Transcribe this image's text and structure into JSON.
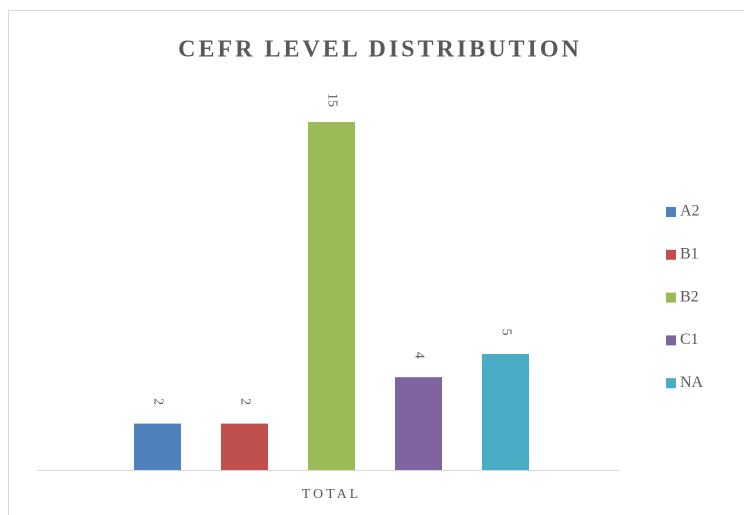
{
  "chart_data": {
    "type": "bar",
    "title": "CEFR LEVEL DISTRIBUTION",
    "categories": [
      "TOTAL"
    ],
    "series": [
      {
        "name": "A2",
        "color": "#4f81bd",
        "values": [
          2
        ]
      },
      {
        "name": "B1",
        "color": "#c0504d",
        "values": [
          2
        ]
      },
      {
        "name": "B2",
        "color": "#9bbb59",
        "values": [
          15
        ]
      },
      {
        "name": "C1",
        "color": "#8064a2",
        "values": [
          4
        ]
      },
      {
        "name": "NA",
        "color": "#4bacc6",
        "values": [
          5
        ]
      }
    ],
    "legend": "right"
  }
}
